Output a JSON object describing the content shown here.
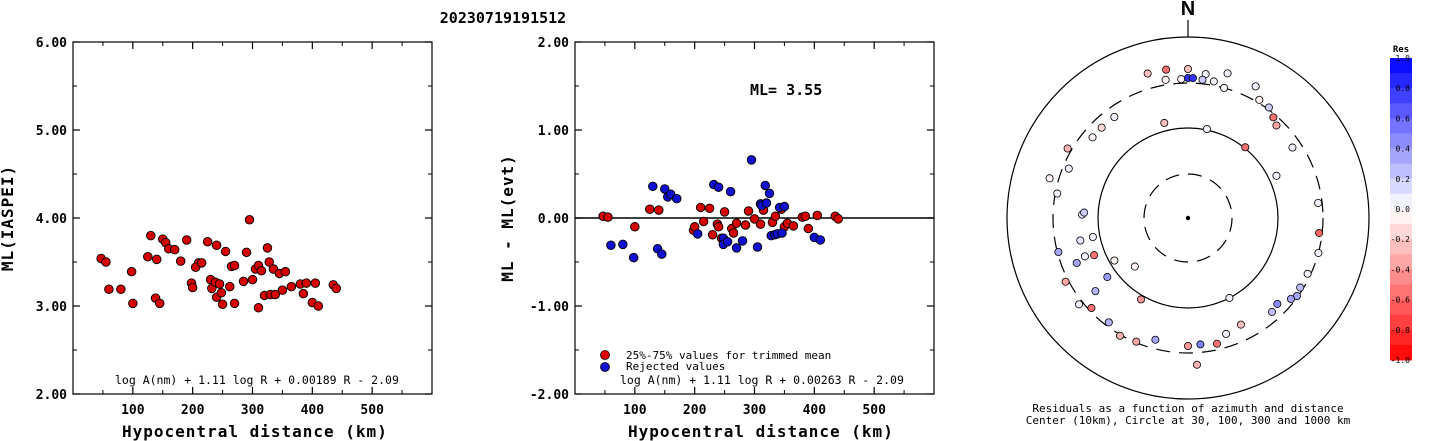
{
  "title": "20230719191512",
  "chart_data": [
    {
      "type": "scatter",
      "xlabel": "Hypocentral distance (km)",
      "ylabel": "ML(IASPEI)",
      "xlim": [
        0,
        600
      ],
      "ylim": [
        2.0,
        6.0
      ],
      "xticks": [
        "100",
        "200",
        "300",
        "400",
        "500"
      ],
      "yticks": [
        "2.00",
        "3.00",
        "4.00",
        "5.00",
        "6.00"
      ],
      "formula": "log A(nm) + 1.11 log R + 0.00189 R - 2.09",
      "points": [
        [
          47,
          3.54
        ],
        [
          55,
          3.5
        ],
        [
          60,
          3.19
        ],
        [
          80,
          3.19
        ],
        [
          98,
          3.39
        ],
        [
          100,
          3.03
        ],
        [
          125,
          3.56
        ],
        [
          130,
          3.8
        ],
        [
          140,
          3.53
        ],
        [
          138,
          3.09
        ],
        [
          145,
          3.03
        ],
        [
          150,
          3.76
        ],
        [
          155,
          3.72
        ],
        [
          160,
          3.65
        ],
        [
          170,
          3.64
        ],
        [
          180,
          3.51
        ],
        [
          190,
          3.75
        ],
        [
          198,
          3.26
        ],
        [
          200,
          3.21
        ],
        [
          210,
          3.49
        ],
        [
          205,
          3.44
        ],
        [
          215,
          3.49
        ],
        [
          225,
          3.73
        ],
        [
          230,
          3.3
        ],
        [
          232,
          3.2
        ],
        [
          240,
          3.69
        ],
        [
          238,
          3.27
        ],
        [
          240,
          3.1
        ],
        [
          245,
          3.25
        ],
        [
          248,
          3.15
        ],
        [
          250,
          3.02
        ],
        [
          255,
          3.62
        ],
        [
          262,
          3.22
        ],
        [
          265,
          3.45
        ],
        [
          270,
          3.46
        ],
        [
          270,
          3.03
        ],
        [
          285,
          3.28
        ],
        [
          290,
          3.61
        ],
        [
          295,
          3.98
        ],
        [
          300,
          3.3
        ],
        [
          305,
          3.42
        ],
        [
          310,
          3.46
        ],
        [
          310,
          2.98
        ],
        [
          315,
          3.4
        ],
        [
          320,
          3.12
        ],
        [
          325,
          3.66
        ],
        [
          328,
          3.5
        ],
        [
          330,
          3.13
        ],
        [
          335,
          3.42
        ],
        [
          338,
          3.13
        ],
        [
          345,
          3.37
        ],
        [
          350,
          3.18
        ],
        [
          355,
          3.39
        ],
        [
          365,
          3.22
        ],
        [
          380,
          3.25
        ],
        [
          385,
          3.14
        ],
        [
          390,
          3.26
        ],
        [
          400,
          3.04
        ],
        [
          405,
          3.26
        ],
        [
          410,
          3.0
        ],
        [
          435,
          3.24
        ],
        [
          440,
          3.2
        ]
      ]
    },
    {
      "type": "scatter",
      "xlabel": "Hypocentral distance (km)",
      "ylabel": "ML - ML(evt)",
      "xlim": [
        0,
        600
      ],
      "ylim": [
        -2.0,
        2.0
      ],
      "xticks": [
        "100",
        "200",
        "300",
        "400",
        "500"
      ],
      "yticks": [
        "-2.00",
        "-1.00",
        "0.00",
        "1.00",
        "2.00"
      ],
      "ml_label": "ML= 3.55",
      "formula": "log A(nm) + 1.11 log R + 0.00263 R - 2.09",
      "legend": [
        {
          "label": "25%-75% values for trimmed mean",
          "color": "#e00000"
        },
        {
          "label": "Rejected values",
          "color": "#1010d0"
        }
      ],
      "trimmed": [
        [
          47,
          0.02
        ],
        [
          55,
          0.01
        ],
        [
          100,
          -0.1
        ],
        [
          125,
          0.1
        ],
        [
          140,
          0.09
        ],
        [
          198,
          -0.14
        ],
        [
          200,
          -0.1
        ],
        [
          210,
          0.12
        ],
        [
          215,
          -0.04
        ],
        [
          225,
          0.11
        ],
        [
          230,
          -0.19
        ],
        [
          238,
          -0.07
        ],
        [
          240,
          -0.1
        ],
        [
          245,
          -0.23
        ],
        [
          250,
          0.07
        ],
        [
          262,
          -0.12
        ],
        [
          265,
          -0.17
        ],
        [
          270,
          -0.06
        ],
        [
          285,
          -0.08
        ],
        [
          290,
          0.08
        ],
        [
          300,
          -0.01
        ],
        [
          310,
          -0.07
        ],
        [
          315,
          0.09
        ],
        [
          330,
          -0.05
        ],
        [
          335,
          0.02
        ],
        [
          345,
          0.1
        ],
        [
          350,
          -0.1
        ],
        [
          355,
          -0.06
        ],
        [
          365,
          -0.09
        ],
        [
          380,
          0.01
        ],
        [
          385,
          0.02
        ],
        [
          390,
          -0.12
        ],
        [
          405,
          0.03
        ],
        [
          435,
          0.02
        ],
        [
          440,
          -0.01
        ]
      ],
      "rejected": [
        [
          60,
          -0.31
        ],
        [
          80,
          -0.3
        ],
        [
          98,
          -0.45
        ],
        [
          130,
          0.36
        ],
        [
          138,
          -0.35
        ],
        [
          145,
          -0.41
        ],
        [
          150,
          0.33
        ],
        [
          155,
          0.24
        ],
        [
          160,
          0.27
        ],
        [
          170,
          0.22
        ],
        [
          205,
          -0.18
        ],
        [
          232,
          0.38
        ],
        [
          240,
          0.35
        ],
        [
          248,
          -0.23
        ],
        [
          248,
          -0.3
        ],
        [
          255,
          -0.27
        ],
        [
          260,
          0.3
        ],
        [
          270,
          -0.34
        ],
        [
          280,
          -0.26
        ],
        [
          295,
          0.66
        ],
        [
          305,
          -0.33
        ],
        [
          310,
          0.16
        ],
        [
          312,
          0.14
        ],
        [
          318,
          0.37
        ],
        [
          320,
          0.17
        ],
        [
          325,
          0.28
        ],
        [
          328,
          -0.2
        ],
        [
          334,
          -0.19
        ],
        [
          338,
          -0.18
        ],
        [
          342,
          0.12
        ],
        [
          346,
          -0.17
        ],
        [
          350,
          0.13
        ],
        [
          400,
          -0.22
        ],
        [
          410,
          -0.25
        ]
      ]
    },
    {
      "type": "polar-scatter",
      "caption_line1": "Residuals as a function of azimuth and distance",
      "caption_line2": "Center (10km), Circle at 30, 100, 300 and 1000 km",
      "north_label": "N",
      "colorbar": {
        "title": "Res",
        "ticks": [
          "1.0",
          "0.8",
          "0.6",
          "0.4",
          "0.2",
          "0.0",
          "-0.2",
          "-0.4",
          "-0.6",
          "-0.8",
          "-1.0"
        ]
      },
      "stations": [
        [
          -15.6,
          150,
          -0.25
        ],
        [
          -8.4,
          150,
          -0.55
        ],
        [
          0.0,
          149,
          -0.25
        ],
        [
          7.0,
          145,
          0.05
        ],
        [
          15.3,
          150,
          0.05
        ],
        [
          -9.2,
          140,
          -0.05
        ],
        [
          -2.8,
          139,
          -0.05
        ],
        [
          0.0,
          140,
          0.8
        ],
        [
          2.0,
          140,
          0.8
        ],
        [
          6.0,
          139,
          0.2
        ],
        [
          10.7,
          139,
          0.05
        ],
        [
          15.5,
          135,
          -0.05
        ],
        [
          27.2,
          148,
          0.05
        ],
        [
          31.1,
          138,
          -0.05
        ],
        [
          36.2,
          137,
          0.2
        ],
        [
          40.3,
          132,
          -0.55
        ],
        [
          43.7,
          128,
          -0.35
        ],
        [
          56.0,
          126,
          0.05
        ],
        [
          96.5,
          132,
          -0.6
        ],
        [
          105.0,
          135,
          0.05
        ],
        [
          115.0,
          132,
          0.05
        ],
        [
          121.8,
          132,
          0.25
        ],
        [
          125.6,
          134,
          0.35
        ],
        [
          128.2,
          131,
          0.35
        ],
        [
          133.9,
          124,
          0.45
        ],
        [
          138.2,
          126,
          0.25
        ],
        [
          153.6,
          119,
          -0.25
        ],
        [
          161.8,
          122,
          0.05
        ],
        [
          167.0,
          129,
          -0.55
        ],
        [
          174.4,
          127,
          0.5
        ],
        [
          180.0,
          128,
          -0.4
        ],
        [
          176.5,
          147,
          -0.3
        ],
        [
          195.0,
          126,
          0.35
        ],
        [
          202.7,
          134,
          -0.35
        ],
        [
          210.0,
          136,
          -0.3
        ],
        [
          217.2,
          131,
          0.3
        ],
        [
          227.0,
          132,
          -0.55
        ],
        [
          231.7,
          118,
          0.3
        ],
        [
          231.6,
          139,
          0.05
        ],
        [
          242.5,
          138,
          -0.35
        ],
        [
          248.0,
          120,
          0.35
        ],
        [
          248.4,
          101,
          -0.55
        ],
        [
          249.6,
          110,
          0.05
        ],
        [
          255.3,
          134,
          0.35
        ],
        [
          258.2,
          110,
          0.1
        ],
        [
          258.7,
          97,
          0.05
        ],
        [
          271.8,
          106,
          0.1
        ],
        [
          280.6,
          133,
          0.05
        ],
        [
          286.0,
          144,
          -0.05
        ],
        [
          292.5,
          129,
          0.05
        ],
        [
          300.0,
          139,
          -0.3
        ],
        [
          310.2,
          125,
          -0.05
        ],
        [
          316.3,
          125,
          -0.15
        ],
        [
          323.9,
          125,
          0.05
        ],
        [
          346.0,
          98,
          -0.25
        ],
        [
          12.0,
          91,
          0.05
        ],
        [
          39.0,
          91,
          -0.55
        ],
        [
          64.5,
          98,
          0.05
        ],
        [
          83.4,
          131,
          0.05
        ],
        [
          152.6,
          90,
          0.05
        ],
        [
          240.0,
          85,
          -0.05
        ],
        [
          233.8,
          100,
          0.4
        ],
        [
          210.0,
          94,
          -0.4
        ],
        [
          227.6,
          72,
          -0.05
        ],
        [
          273.0,
          104,
          0.2
        ]
      ]
    }
  ]
}
